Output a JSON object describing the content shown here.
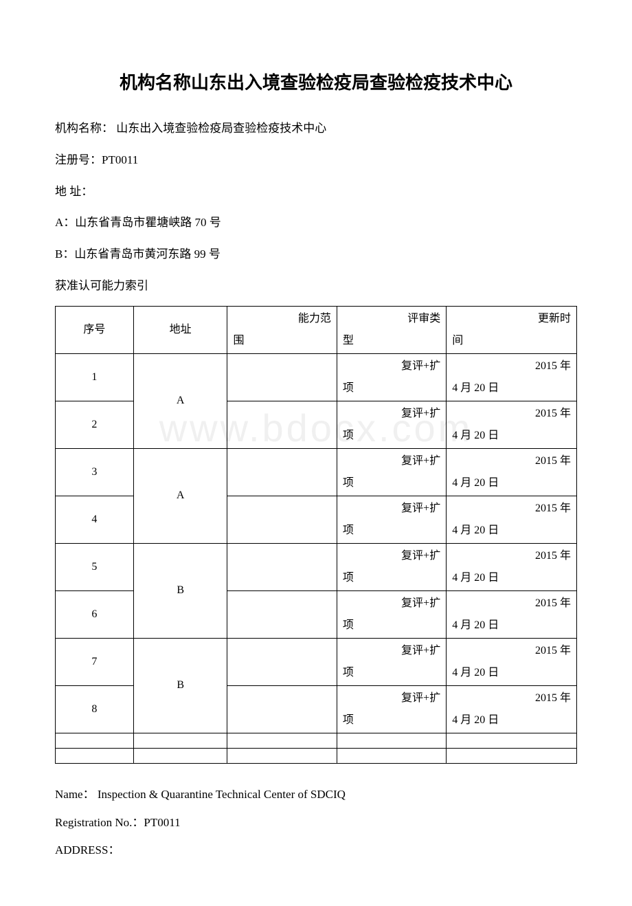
{
  "watermark": "www.bdocx.com",
  "title": "机构名称山东出入境查验检疫局查验检疫技术中心",
  "org_label": "机构名称：",
  "org_name": "山东出入境查验检疫局查验检疫技术中心",
  "reg_label": "注册号：",
  "reg_no": "PT0011",
  "addr_label": "地 址：",
  "addr_a": "A：山东省青岛市瞿塘峡路 70 号",
  "addr_b": "B：山东省青岛市黄河东路 99 号",
  "index_title": "获准认可能力索引",
  "table": {
    "headers": {
      "seq": "序号",
      "addr": "地址",
      "scope_prefix": "能力范",
      "scope_suffix": "围",
      "type_prefix": "评审类",
      "type_suffix": "型",
      "time_prefix": "更新时",
      "time_suffix": "间"
    },
    "rows": [
      {
        "seq": "1",
        "addr": "A",
        "addr_rowspan": 2,
        "scope": "",
        "type": "复评+扩项",
        "time": "2015 年 4 月 20 日"
      },
      {
        "seq": "2",
        "scope": "",
        "type": "复评+扩项",
        "time": "2015 年 4 月 20 日"
      },
      {
        "seq": "3",
        "addr": "A",
        "addr_rowspan": 2,
        "scope": "",
        "type": "复评+扩项",
        "time": "2015 年 4 月 20 日"
      },
      {
        "seq": "4",
        "scope": "",
        "type": "复评+扩项",
        "time": "2015 年 4 月 20 日"
      },
      {
        "seq": "5",
        "addr": "B",
        "addr_rowspan": 2,
        "scope": "",
        "type": "复评+扩项",
        "time": "2015 年 4 月 20 日"
      },
      {
        "seq": "6",
        "scope": "",
        "type": "复评+扩项",
        "time": "2015 年 4 月 20 日"
      },
      {
        "seq": "7",
        "addr": "B",
        "addr_rowspan": 2,
        "scope": "",
        "type": "复评+扩项",
        "time": "2015 年 4 月 20 日"
      },
      {
        "seq": "8",
        "scope": "",
        "type": "复评+扩项",
        "time": "2015 年 4 月 20 日"
      }
    ]
  },
  "english": {
    "name_label": "Name：",
    "name": "Inspection & Quarantine Technical Center of SDCIQ",
    "reg_label": "Registration No.：",
    "reg_no": "PT0011",
    "addr_label": "ADDRESS："
  }
}
